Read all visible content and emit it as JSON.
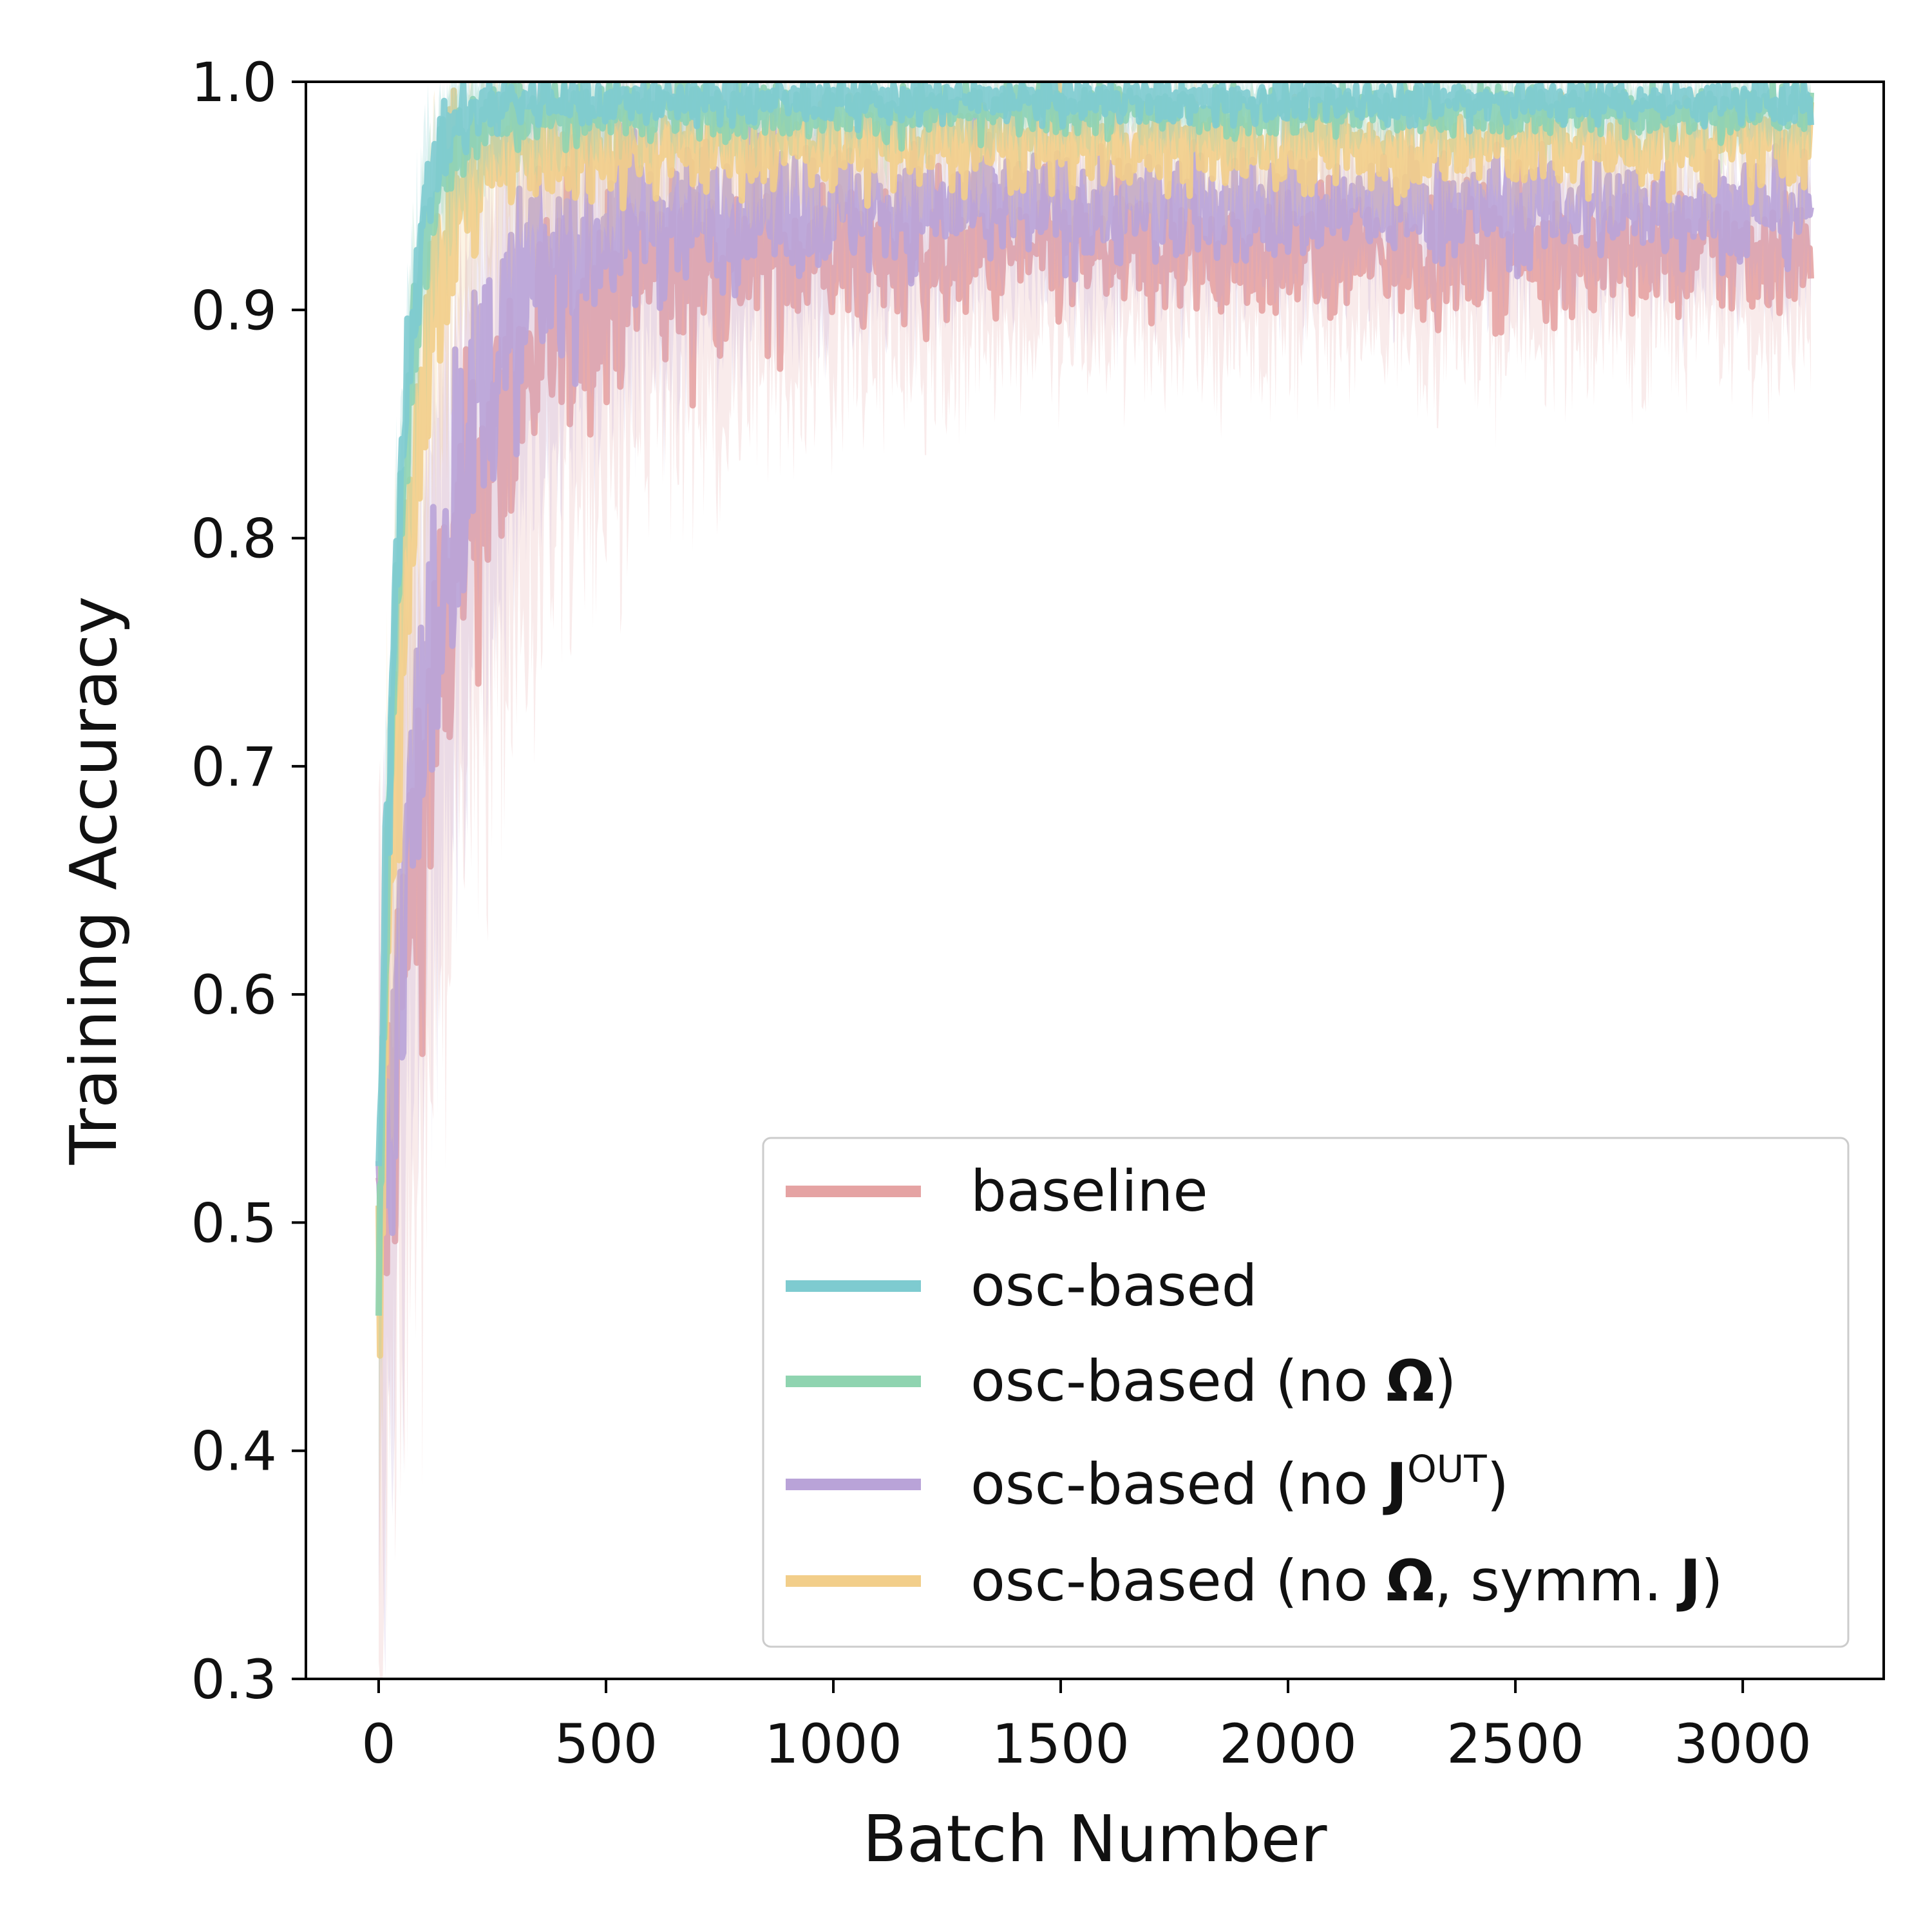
{
  "chart_data": {
    "type": "line",
    "title": "",
    "xlabel": "Batch Number",
    "ylabel": "Training Accuracy",
    "xlim": [
      -160,
      3310
    ],
    "ylim": [
      0.3,
      1.0
    ],
    "xticks": [
      0,
      500,
      1000,
      1500,
      2000,
      2500,
      3000
    ],
    "xtick_labels": [
      "0",
      "500",
      "1000",
      "1500",
      "2000",
      "2500",
      "3000"
    ],
    "yticks": [
      0.3,
      0.4,
      0.5,
      0.6,
      0.7,
      0.8,
      0.9,
      1.0
    ],
    "ytick_labels": [
      "0.3",
      "0.4",
      "0.5",
      "0.6",
      "0.7",
      "0.8",
      "0.9",
      "1.0"
    ],
    "grid": false,
    "legend_position": "bottom-right",
    "x_range": [
      0,
      3150
    ],
    "series": [
      {
        "name": "baseline",
        "color": "#e5a3a3",
        "start": 0.47,
        "plateau": 0.925,
        "tau": 150,
        "noise": 0.014,
        "band": 0.035
      },
      {
        "name": "osc-based",
        "color": "#7ecbd0",
        "start": 0.5,
        "plateau": 0.992,
        "tau": 45,
        "noise": 0.005,
        "band": 0.012
      },
      {
        "name": "osc-based (no Ω)",
        "color": "#8fd4b0",
        "start": 0.48,
        "plateau": 0.988,
        "tau": 48,
        "noise": 0.006,
        "band": 0.013
      },
      {
        "name": "osc-based (no J^OUT)",
        "color": "#b9a3d8",
        "start": 0.47,
        "plateau": 0.945,
        "tau": 130,
        "noise": 0.012,
        "band": 0.03
      },
      {
        "name": "osc-based (no Ω, symm. J)",
        "color": "#f2ce8a",
        "start": 0.46,
        "plateau": 0.972,
        "tau": 60,
        "noise": 0.01,
        "band": 0.02
      }
    ]
  },
  "legend": {
    "items": [
      {
        "name": "baseline",
        "color": "#e5a3a3"
      },
      {
        "name": "osc-based",
        "color": "#7ecbd0"
      },
      {
        "name": "osc-based (no Ω)",
        "color": "#8fd4b0"
      },
      {
        "name": "osc-based (no J^OUT)",
        "color": "#b9a3d8"
      },
      {
        "name": "osc-based (no Ω, symm. J)",
        "color": "#f2ce8a"
      }
    ]
  }
}
